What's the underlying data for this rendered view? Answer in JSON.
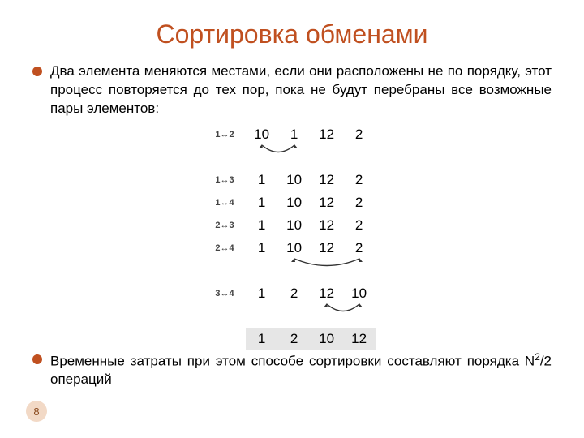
{
  "colors": {
    "title": "#c05020",
    "bullet": "#c05020",
    "text": "#000000",
    "badge_bg": "#f2d9c6",
    "badge_text": "#8a4a1e",
    "result_row_bg": "#e6e6e6"
  },
  "title": "Сортировка обменами",
  "bullets": [
    "Два элемента меняются местами, если они расположены не по порядку, этот процесс повторяется до тех пор, пока не будут перебраны все возможные пары элементов:",
    "Временные затраты при этом способе сортировки составляют порядка N²/2 операций"
  ],
  "sort_steps": {
    "labels": [
      "1↔2",
      "1↔3",
      "1↔4",
      "2↔3",
      "2↔4",
      "3↔4"
    ],
    "rows": [
      [
        "10",
        "1",
        "12",
        "2"
      ],
      [
        "1",
        "10",
        "12",
        "2"
      ],
      [
        "1",
        "10",
        "12",
        "2"
      ],
      [
        "1",
        "10",
        "12",
        "2"
      ],
      [
        "1",
        "10",
        "12",
        "2"
      ],
      [
        "1",
        "2",
        "12",
        "10"
      ]
    ],
    "result": [
      "1",
      "2",
      "10",
      "12"
    ],
    "swaps": [
      {
        "row": 0,
        "from": 0,
        "to": 1
      },
      {
        "row": 4,
        "from": 1,
        "to": 3
      },
      {
        "row": 5,
        "from": 2,
        "to": 3
      }
    ]
  },
  "page_number": "8",
  "fonts": {
    "title_pt": 32,
    "body_pt": 17,
    "label_pt": 11,
    "badge_pt": 13
  }
}
